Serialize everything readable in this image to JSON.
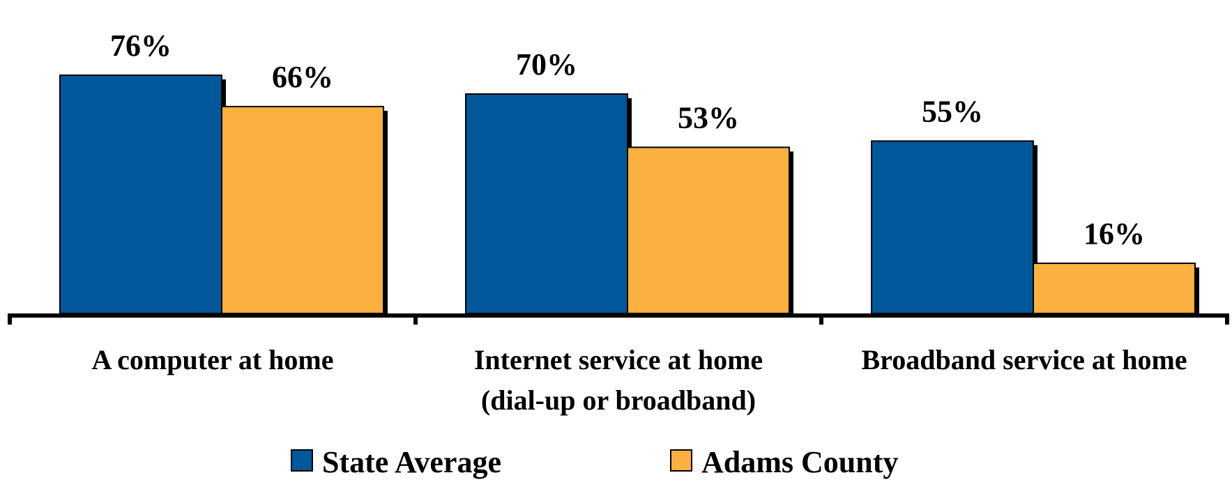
{
  "chart_data": {
    "type": "bar",
    "categories": [
      [
        "A computer at home"
      ],
      [
        "Internet service at home",
        "(dial-up or broadband)"
      ],
      [
        "Broadband service at home"
      ]
    ],
    "series": [
      {
        "name": "State Average",
        "color": "#02589A",
        "values": [
          76,
          70,
          55
        ],
        "labels": [
          "76%",
          "70%",
          "55%"
        ]
      },
      {
        "name": "Adams County",
        "color": "#FBB040",
        "values": [
          66,
          53,
          16
        ],
        "labels": [
          "66%",
          "53%",
          "16%"
        ]
      }
    ],
    "ylim": [
      0,
      100
    ],
    "grid": false,
    "legend_position": "bottom"
  }
}
